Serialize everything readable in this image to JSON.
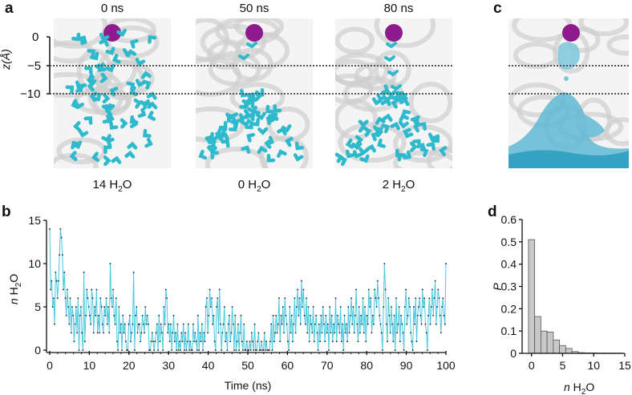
{
  "panels": {
    "a": {
      "label": "a",
      "yaxis_label": "z(Å)",
      "yticks": [
        "0",
        "−5",
        "−10"
      ],
      "snapshots": [
        {
          "time": "0 ns",
          "count_num": "14",
          "count_unit": "H",
          "count_sub": "2",
          "count_tail": "O"
        },
        {
          "time": "50 ns",
          "count_num": "0",
          "count_unit": "H",
          "count_sub": "2",
          "count_tail": "O"
        },
        {
          "time": "80 ns",
          "count_num": "2",
          "count_unit": "H",
          "count_sub": "2",
          "count_tail": "O"
        }
      ]
    },
    "c": {
      "label": "c"
    },
    "b": {
      "label": "b"
    },
    "d": {
      "label": "d"
    }
  },
  "colors": {
    "water": "#2fb9cc",
    "ion": "#8e1a8e",
    "protein": "#d9d9d9",
    "bar_fill": "#c8c8c8",
    "line": "#39c3db"
  },
  "chart_data": [
    {
      "type": "line",
      "panel": "b",
      "title": "",
      "xlabel": "Time (ns)",
      "ylabel_italic": "n",
      "ylabel_rest": "H",
      "ylabel_sub": "2",
      "ylabel_tail": "O",
      "xlim": [
        0,
        100
      ],
      "ylim": [
        0,
        15
      ],
      "xticks": [
        0,
        10,
        20,
        30,
        40,
        50,
        60,
        70,
        80,
        90,
        100
      ],
      "yticks": [
        0,
        5,
        10,
        15
      ],
      "grid": false,
      "series": [
        {
          "name": "n H2O",
          "x_step": 0.25,
          "values": [
            14,
            7,
            8,
            5,
            6,
            3,
            9,
            8,
            6,
            8,
            11,
            14,
            13,
            11,
            7,
            9,
            6,
            4,
            7,
            5,
            3,
            6,
            2,
            5,
            4,
            1,
            3,
            5,
            2,
            6,
            0,
            4,
            5,
            2,
            0,
            9,
            1,
            4,
            7,
            6,
            5,
            4,
            3,
            7,
            6,
            2,
            5,
            4,
            7,
            2,
            4,
            2,
            6,
            5,
            3,
            2,
            5,
            4,
            6,
            3,
            5,
            2,
            10,
            6,
            5,
            7,
            4,
            3,
            6,
            1,
            0,
            5,
            2,
            3,
            0,
            4,
            2,
            3,
            1,
            0,
            0,
            3,
            4,
            1,
            2,
            3,
            9,
            0,
            4,
            5,
            2,
            3,
            3,
            1,
            2,
            4,
            3,
            2,
            5,
            3,
            4,
            3,
            0,
            0,
            1,
            2,
            1,
            0,
            1,
            2,
            3,
            0,
            4,
            1,
            3,
            2,
            0,
            5,
            3,
            7,
            6,
            2,
            3,
            1,
            3,
            0,
            2,
            4,
            1,
            2,
            0,
            3,
            0,
            1,
            0,
            2,
            1,
            3,
            0,
            2,
            0,
            1,
            3,
            0,
            1,
            0,
            0,
            3,
            1,
            2,
            1,
            0,
            4,
            0,
            2,
            1,
            3,
            0,
            2,
            1,
            5,
            6,
            2,
            4,
            7,
            5,
            6,
            3,
            4,
            1,
            0,
            5,
            6,
            2,
            7,
            3,
            0,
            2,
            3,
            5,
            1,
            2,
            0,
            3,
            4,
            1,
            2,
            5,
            3,
            0,
            4,
            0,
            1,
            3,
            0,
            2,
            4,
            1,
            0,
            3,
            0,
            0,
            1,
            0,
            0,
            1,
            0,
            2,
            1,
            0,
            3,
            0,
            0,
            1,
            2,
            0,
            0,
            1,
            0,
            0,
            2,
            0,
            1,
            0,
            0,
            0,
            1,
            3,
            0,
            4,
            1,
            2,
            4,
            2,
            3,
            6,
            1,
            4,
            3,
            5,
            2,
            6,
            4,
            3,
            1,
            0,
            5,
            2,
            4,
            1,
            3,
            6,
            2,
            5,
            7,
            4,
            6,
            3,
            8,
            5,
            7,
            4,
            3,
            6,
            2,
            5,
            1,
            4,
            3,
            2,
            5,
            1,
            3,
            4,
            2,
            0,
            3,
            1,
            4,
            2,
            5,
            3,
            1,
            4,
            2,
            3,
            0,
            5,
            2,
            4,
            1,
            3,
            2,
            6,
            1,
            4,
            3,
            2,
            5,
            1,
            3,
            0,
            4,
            2,
            3,
            1,
            5,
            2,
            4,
            6,
            3,
            5,
            2,
            4,
            7,
            3,
            1,
            5,
            2,
            4,
            3,
            6,
            2,
            5,
            1,
            4,
            3,
            7,
            5,
            6,
            2,
            4,
            3,
            7,
            6,
            5,
            8,
            6,
            4,
            3,
            2,
            0,
            5,
            10,
            7,
            3,
            1,
            6,
            4,
            2,
            5,
            3,
            1,
            4,
            0,
            6,
            2,
            3,
            5,
            1,
            4,
            3,
            2,
            0,
            5,
            7,
            3,
            4,
            6,
            5,
            2,
            1,
            0,
            5,
            3,
            6,
            1,
            4,
            5,
            6,
            4,
            3,
            7,
            5,
            6,
            3,
            2,
            0,
            4,
            6,
            3,
            5,
            7,
            4,
            6,
            8,
            3,
            5,
            7,
            6,
            4,
            2,
            5,
            6,
            4,
            3,
            10
          ]
        }
      ]
    },
    {
      "type": "bar",
      "panel": "d",
      "title": "",
      "xlabel_italic": "n",
      "xlabel_rest": "H",
      "xlabel_sub": "2",
      "xlabel_tail": "O",
      "ylabel": "P",
      "xlim": [
        -1,
        15
      ],
      "ylim": [
        0,
        0.6
      ],
      "xticks": [
        0,
        5,
        10,
        15
      ],
      "yticks": [
        0,
        0.1,
        0.2,
        0.3,
        0.4,
        0.5,
        0.6
      ],
      "ytick_labels": [
        "0",
        "0.1",
        "0.2",
        "0.3",
        "0.4",
        "0.5",
        "0.6"
      ],
      "grid": false,
      "categories": [
        0,
        1,
        2,
        3,
        4,
        5,
        6,
        7,
        8,
        9,
        10,
        11,
        12,
        13,
        14
      ],
      "values": [
        0.51,
        0.165,
        0.1,
        0.095,
        0.06,
        0.035,
        0.022,
        0.008,
        0.003,
        0.002,
        0.002,
        0.001,
        0.001,
        0.001,
        0.001
      ]
    }
  ]
}
